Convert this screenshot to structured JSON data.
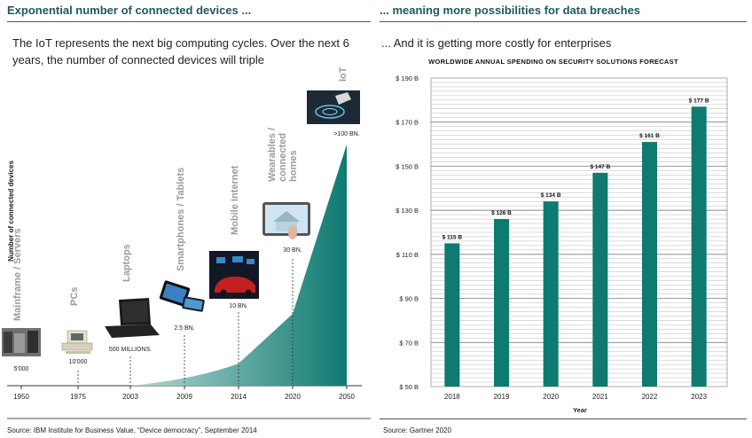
{
  "left": {
    "title": "Exponential number of connected devices ...",
    "subtitle": "The IoT represents the next big computing cycles. Over the next 6 years, the number of connected devices will triple",
    "source": "Source: IBM Institute for Business Value, “Device democracy”, September 2014",
    "chart_data": {
      "type": "area",
      "title": "",
      "ylabel": "Number of connected devices",
      "xlabel": "",
      "x": [
        "1950",
        "1975",
        "2003",
        "2009",
        "2014",
        "2020",
        "2050"
      ],
      "eras": [
        {
          "name": "Mainframe / Servers",
          "year": "1950",
          "count": "5'000",
          "icon": "mainframe-photo-icon"
        },
        {
          "name": "PCs",
          "year": "1975",
          "count": "10'000",
          "icon": "pc-icon"
        },
        {
          "name": "Laptops",
          "year": "2003",
          "count": "500 MILLIONS.",
          "icon": "laptop-icon"
        },
        {
          "name": "Smartphones / Tablets",
          "year": "2009",
          "count": "2.5 BN.",
          "icon": "smartphone-tablet-icon"
        },
        {
          "name": "Mobile Internet",
          "year": "2014",
          "count": "10 BN.",
          "icon": "car-mobile-internet-icon"
        },
        {
          "name": "Wearables / connected homes",
          "year": "2020",
          "count": "30 BN.",
          "icon": "smart-home-tablet-icon"
        },
        {
          "name": "IoT",
          "year": "2050",
          "count": ">100 BN.",
          "icon": "iot-touch-icon"
        }
      ],
      "colors": {
        "fill_start": "#e8f2f1",
        "fill_end": "#0e7a70"
      }
    }
  },
  "right": {
    "title": "... meaning more possibilities for data breaches",
    "subtitle": "... And it is getting more costly for enterprises",
    "source": "Source: Gartner 2020",
    "chart_data": {
      "type": "bar",
      "title": "WORLDWIDE ANNUAL SPENDING ON SECURITY SOLUTIONS FORECAST",
      "xlabel": "Year",
      "ylabel": "",
      "categories": [
        "2018",
        "2019",
        "2020",
        "2021",
        "2022",
        "2023"
      ],
      "values": [
        115,
        126,
        134,
        147,
        161,
        177
      ],
      "data_labels": [
        "$ 115 B",
        "$ 126 B",
        "$ 134 B",
        "$ 147 B",
        "$ 161 B",
        "$ 177 B"
      ],
      "ylim": [
        50,
        190
      ],
      "y_ticks": [
        50,
        70,
        90,
        110,
        130,
        150,
        170,
        190
      ],
      "y_tick_labels": [
        "$ 50 B",
        "$ 70 B",
        "$ 90 B",
        "$ 110 B",
        "$ 130 B",
        "$ 150 B",
        "$ 170 B",
        "$ 190 B"
      ],
      "gridlines": true,
      "colors": {
        "bar": "#0e7a70"
      }
    }
  }
}
